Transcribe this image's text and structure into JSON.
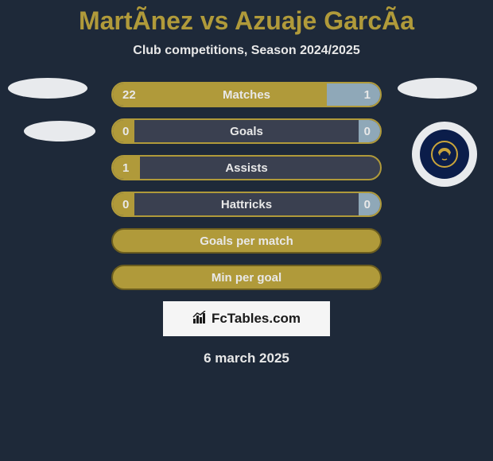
{
  "title": "MartÃ­nez vs Azuaje GarcÃ­a",
  "subtitle": "Club competitions, Season 2024/2025",
  "date": "6 march 2025",
  "watermark": "FcTables.com",
  "colors": {
    "background": "#1e2939",
    "accent": "#b09a3a",
    "right_bar": "#8fa8b8",
    "bar_bg": "#3a4050",
    "text": "#e8e8e8",
    "badge_bg": "#e8eaed",
    "badge_inner": "#0b1d4a"
  },
  "bars": [
    {
      "label": "Matches",
      "left_val": "22",
      "right_val": "1",
      "left_pct": 80,
      "right_pct": 20,
      "show_vals": true
    },
    {
      "label": "Goals",
      "left_val": "0",
      "right_val": "0",
      "left_pct": 8,
      "right_pct": 8,
      "show_vals": true
    },
    {
      "label": "Assists",
      "left_val": "1",
      "right_val": "",
      "left_pct": 10,
      "right_pct": 0,
      "show_vals": true
    },
    {
      "label": "Hattricks",
      "left_val": "0",
      "right_val": "0",
      "left_pct": 8,
      "right_pct": 8,
      "show_vals": true
    },
    {
      "label": "Goals per match",
      "left_val": "",
      "right_val": "",
      "left_pct": 100,
      "right_pct": 0,
      "show_vals": false,
      "full": true
    },
    {
      "label": "Min per goal",
      "left_val": "",
      "right_val": "",
      "left_pct": 100,
      "right_pct": 0,
      "show_vals": false,
      "full": true
    }
  ]
}
